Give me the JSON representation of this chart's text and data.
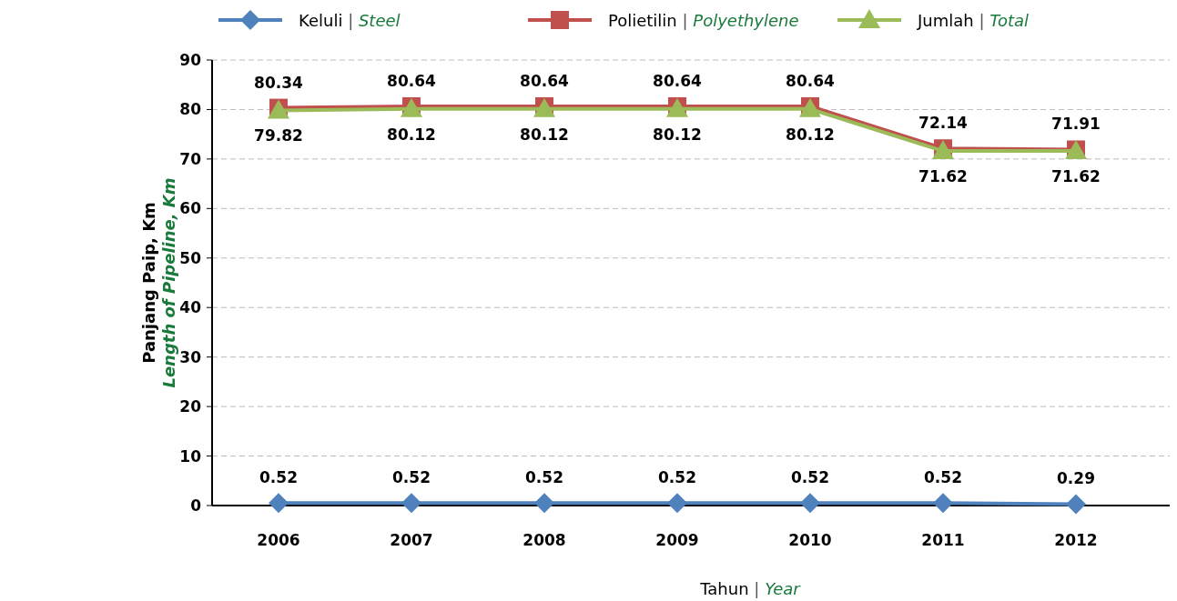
{
  "chart_data": {
    "type": "line",
    "xlabel": "Tahun | Year",
    "ylabel": "Panjang Paip, Km\nLength of Pipeline, Km",
    "categories": [
      "2006",
      "2007",
      "2008",
      "2009",
      "2010",
      "2011",
      "2012"
    ],
    "series": [
      {
        "name": "Keluli | Steel",
        "color": "#4f81bd",
        "marker": "diamond",
        "values": [
          0.52,
          0.52,
          0.52,
          0.52,
          0.52,
          0.52,
          0.29
        ]
      },
      {
        "name": "Polietilin | Polyethylene",
        "color": "#c0504d",
        "marker": "square",
        "values": [
          80.34,
          80.64,
          80.64,
          80.64,
          80.64,
          72.14,
          71.91
        ]
      },
      {
        "name": "Jumlah | Total",
        "color": "#9bbb59",
        "marker": "triangle",
        "values": [
          79.82,
          80.12,
          80.12,
          80.12,
          80.12,
          71.62,
          71.62
        ]
      }
    ],
    "ylim": [
      0,
      90
    ],
    "yticks": [
      0,
      10,
      20,
      30,
      40,
      50,
      60,
      70,
      80,
      90
    ],
    "grid": "y",
    "legend": "top",
    "data_labels": true,
    "line_style": "solid"
  }
}
